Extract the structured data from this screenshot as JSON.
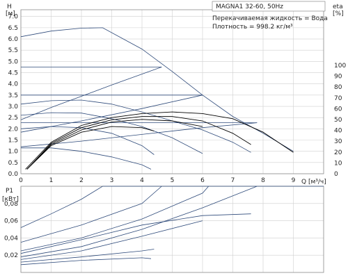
{
  "info": {
    "model": "MAGNA1 32-60, 50Hz",
    "fluid": "Перекачиваемая жидкость = Вода",
    "density": "Плотность = 998.2 кг/м³"
  },
  "chart_data": [
    {
      "type": "line",
      "title": "",
      "ylabel_top": "H",
      "ylabel_unit": "[м]",
      "y2label_top": "eta",
      "y2label_unit": "[%]",
      "xlabel": "Q [м³/ч]",
      "xlim": [
        0,
        10
      ],
      "ylim": [
        0,
        7.3
      ],
      "y2lim": [
        0,
        100
      ],
      "x_ticks": [
        0,
        1,
        2,
        3,
        4,
        5,
        6,
        7,
        8,
        9
      ],
      "y_ticks": [
        "0.0",
        "0.5",
        "1.0",
        "1.5",
        "2.0",
        "2.5",
        "3.0",
        "3.5",
        "4.0",
        "4.5",
        "5.0",
        "5.5",
        "6.0",
        "6.5",
        "7.0"
      ],
      "y2_ticks": [
        "0",
        "10",
        "20",
        "30",
        "40",
        "50",
        "60",
        "70",
        "80",
        "90",
        "100"
      ],
      "grid": true,
      "series": [
        {
          "kind": "head",
          "values": [
            [
              0,
              6.1
            ],
            [
              1,
              6.35
            ],
            [
              2,
              6.48
            ],
            [
              2.7,
              6.5
            ],
            [
              4,
              5.55
            ],
            [
              5,
              4.55
            ],
            [
              6,
              3.5
            ],
            [
              7,
              2.55
            ],
            [
              8,
              1.8
            ],
            [
              9,
              1.0
            ]
          ]
        },
        {
          "kind": "hline",
          "values": [
            [
              0,
              4.75
            ],
            [
              4.65,
              4.75
            ]
          ]
        },
        {
          "kind": "head",
          "values": [
            [
              0,
              2.4
            ],
            [
              1,
              2.95
            ],
            [
              2,
              3.45
            ],
            [
              3,
              3.95
            ],
            [
              4.65,
              4.75
            ]
          ]
        },
        {
          "kind": "hline",
          "values": [
            [
              0,
              3.5
            ],
            [
              6,
              3.5
            ]
          ]
        },
        {
          "kind": "head",
          "values": [
            [
              0,
              1.85
            ],
            [
              2,
              2.35
            ],
            [
              4,
              2.9
            ],
            [
              6,
              3.5
            ]
          ]
        },
        {
          "kind": "hline",
          "values": [
            [
              0,
              2.27
            ],
            [
              7.8,
              2.27
            ]
          ]
        },
        {
          "kind": "head",
          "values": [
            [
              0,
              1.2
            ],
            [
              2,
              1.45
            ],
            [
              4,
              1.75
            ],
            [
              6,
              2.05
            ],
            [
              7.8,
              2.27
            ]
          ]
        },
        {
          "kind": "head",
          "values": [
            [
              0,
              3.1
            ],
            [
              1,
              3.25
            ],
            [
              2,
              3.28
            ],
            [
              3,
              3.1
            ],
            [
              4,
              2.75
            ],
            [
              5,
              2.35
            ],
            [
              6,
              1.95
            ],
            [
              7,
              1.4
            ],
            [
              7.6,
              0.95
            ]
          ]
        },
        {
          "kind": "head",
          "values": [
            [
              0,
              2.6
            ],
            [
              1,
              2.72
            ],
            [
              2,
              2.7
            ],
            [
              3,
              2.45
            ],
            [
              4,
              2.1
            ],
            [
              5,
              1.6
            ],
            [
              6,
              0.9
            ]
          ]
        },
        {
          "kind": "head",
          "values": [
            [
              0,
              2.0
            ],
            [
              1,
              2.1
            ],
            [
              2,
              2.05
            ],
            [
              3,
              1.8
            ],
            [
              4,
              1.25
            ],
            [
              4.4,
              0.85
            ]
          ]
        },
        {
          "kind": "head",
          "values": [
            [
              0,
              1.15
            ],
            [
              1,
              1.15
            ],
            [
              2,
              1.0
            ],
            [
              3,
              0.75
            ],
            [
              4,
              0.4
            ],
            [
              4.3,
              0.2
            ]
          ]
        },
        {
          "kind": "eta",
          "values": [
            [
              0.15,
              0.2
            ],
            [
              1,
              1.4
            ],
            [
              2,
              2.15
            ],
            [
              3,
              2.5
            ],
            [
              4,
              2.68
            ],
            [
              5,
              2.75
            ],
            [
              6,
              2.68
            ],
            [
              7,
              2.45
            ],
            [
              8,
              1.85
            ],
            [
              9,
              0.95
            ]
          ]
        },
        {
          "kind": "eta",
          "values": [
            [
              0.2,
              0.2
            ],
            [
              1,
              1.35
            ],
            [
              2,
              2.05
            ],
            [
              3,
              2.4
            ],
            [
              4,
              2.55
            ],
            [
              5,
              2.55
            ],
            [
              6,
              2.35
            ],
            [
              7,
              1.8
            ],
            [
              7.6,
              1.3
            ]
          ]
        },
        {
          "kind": "eta",
          "values": [
            [
              0.2,
              0.2
            ],
            [
              1,
              1.3
            ],
            [
              2,
              1.95
            ],
            [
              3,
              2.3
            ],
            [
              4,
              2.42
            ],
            [
              5,
              2.35
            ],
            [
              6,
              2.1
            ]
          ]
        },
        {
          "kind": "eta",
          "values": [
            [
              0.2,
              0.2
            ],
            [
              1,
              1.25
            ],
            [
              2,
              1.85
            ],
            [
              3,
              2.1
            ],
            [
              4,
              2.05
            ],
            [
              4.4,
              1.9
            ]
          ]
        }
      ]
    },
    {
      "type": "line",
      "title": "",
      "ylabel_top": "P1",
      "ylabel_unit": "[кВт]",
      "xlim": [
        0,
        10
      ],
      "ylim": [
        0,
        0.1
      ],
      "y_ticks": [
        "0,02",
        "0,04",
        "0,06",
        "0,08"
      ],
      "grid": true,
      "series": [
        {
          "kind": "power",
          "values": [
            [
              0,
              0.052
            ],
            [
              1,
              0.068
            ],
            [
              2,
              0.085
            ],
            [
              2.7,
              0.1
            ],
            [
              10,
              0.1
            ]
          ]
        },
        {
          "kind": "power",
          "values": [
            [
              0,
              0.035
            ],
            [
              2,
              0.055
            ],
            [
              4,
              0.08
            ],
            [
              4.65,
              0.1
            ]
          ]
        },
        {
          "kind": "power",
          "values": [
            [
              0,
              0.025
            ],
            [
              2,
              0.04
            ],
            [
              4,
              0.062
            ],
            [
              6,
              0.092
            ],
            [
              6.2,
              0.1
            ]
          ]
        },
        {
          "kind": "power",
          "values": [
            [
              0,
              0.018
            ],
            [
              2,
              0.03
            ],
            [
              4,
              0.05
            ],
            [
              6,
              0.075
            ],
            [
              7.8,
              0.1
            ]
          ]
        },
        {
          "kind": "power",
          "values": [
            [
              0,
              0.022
            ],
            [
              2,
              0.038
            ],
            [
              4,
              0.055
            ],
            [
              6,
              0.066
            ],
            [
              7.6,
              0.068
            ]
          ]
        },
        {
          "kind": "power",
          "values": [
            [
              0,
              0.015
            ],
            [
              2,
              0.025
            ],
            [
              4,
              0.042
            ],
            [
              6,
              0.06
            ]
          ]
        },
        {
          "kind": "power",
          "values": [
            [
              0,
              0.012
            ],
            [
              2,
              0.018
            ],
            [
              4,
              0.025
            ],
            [
              4.4,
              0.027
            ]
          ]
        },
        {
          "kind": "power",
          "values": [
            [
              0,
              0.009
            ],
            [
              2,
              0.014
            ],
            [
              4,
              0.017
            ],
            [
              4.3,
              0.016
            ]
          ]
        }
      ]
    }
  ]
}
